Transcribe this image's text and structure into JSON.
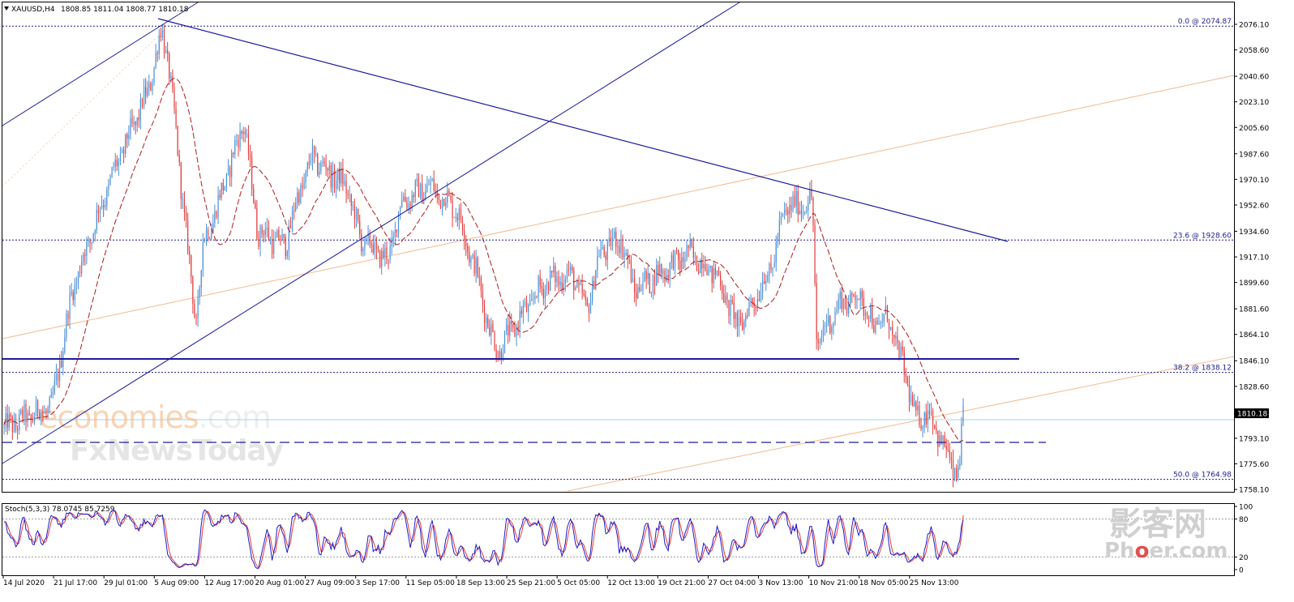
{
  "header": {
    "symbol": "XAUUSD,H4",
    "quote": "1808.85 1811.04 1808.77 1810.18"
  },
  "price_axis": {
    "labels": [
      "2076.10",
      "2058.60",
      "2040.60",
      "2023.10",
      "2005.60",
      "1987.60",
      "1970.10",
      "1952.60",
      "1934.60",
      "1917.10",
      "1899.60",
      "1881.60",
      "1864.10",
      "1846.10",
      "1828.60",
      "1810.18",
      "1793.10",
      "1775.60",
      "1758.10"
    ],
    "current_price": "1810.18"
  },
  "fib_levels": [
    {
      "label": "0.0 @ 2074.87",
      "price": 2074.87
    },
    {
      "label": "23.6 @ 1928.60",
      "price": 1928.6
    },
    {
      "label": "38.2 @ 1838.12",
      "price": 1838.12
    },
    {
      "label": "50.0 @ 1764.98",
      "price": 1764.98
    }
  ],
  "stoch": {
    "label": "Stoch(5,3,3) 78.0745 85.7259",
    "axis_labels": [
      "100",
      "80",
      "20",
      "0"
    ]
  },
  "time_axis": {
    "labels": [
      "14 Jul 2020",
      "21 Jul 17:00",
      "29 Jul 01:00",
      "5 Aug 09:00",
      "12 Aug 17:00",
      "20 Aug 01:00",
      "27 Aug 09:00",
      "3 Sep 17:00",
      "11 Sep 05:00",
      "18 Sep 13:00",
      "25 Sep 21:00",
      "5 Oct 05:00",
      "12 Oct 13:00",
      "19 Oct 21:00",
      "27 Oct 04:00",
      "3 Nov 13:00",
      "10 Nov 21:00",
      "18 Nov 05:00",
      "25 Nov 13:00"
    ]
  },
  "watermarks": {
    "site": "economies.com",
    "site_part1": "economies",
    "site_part2": ".com",
    "news": "FxNewsToday",
    "phoer_cn": "影客网",
    "phoer_en": "Phoer.com",
    "phoer_en_a": "Ph",
    "phoer_en_b": "o",
    "phoer_en_c": "er.com"
  },
  "colors": {
    "bull": "#4a8fd6",
    "bear": "#e23c3c",
    "trendline": "#1c1c9c",
    "fib": "#1c1c8c",
    "ma": "#b01a1a",
    "stoch_main": "#1c1cc8",
    "stoch_signal": "#e23c3c",
    "channel_orange": "#f5b98c",
    "current_line": "#9fd8e8"
  },
  "chart_data": {
    "type": "candlestick",
    "symbol": "XAUUSD",
    "timeframe": "H4",
    "ylim": [
      1758.1,
      2087
    ],
    "x_start": "14 Jul 2020",
    "x_end": "30 Nov 2020",
    "current_price": 1810.18,
    "path_points": [
      [
        "14 Jul",
        1800
      ],
      [
        "21 Jul",
        1815
      ],
      [
        "24 Jul",
        1895
      ],
      [
        "28 Jul",
        1950
      ],
      [
        "30 Jul",
        1975
      ],
      [
        "4 Aug",
        2030
      ],
      [
        "6 Aug",
        2072
      ],
      [
        "7 Aug",
        2050
      ],
      [
        "11 Aug",
        1870
      ],
      [
        "12 Aug",
        1925
      ],
      [
        "14 Aug",
        1950
      ],
      [
        "18 Aug",
        2010
      ],
      [
        "20 Aug",
        1935
      ],
      [
        "24 Aug",
        1925
      ],
      [
        "26 Aug",
        1960
      ],
      [
        "28 Aug",
        1985
      ],
      [
        "2 Sep",
        1965
      ],
      [
        "4 Sep",
        1930
      ],
      [
        "8 Sep",
        1915
      ],
      [
        "10 Sep",
        1955
      ],
      [
        "14 Sep",
        1965
      ],
      [
        "16 Sep",
        1958
      ],
      [
        "18 Sep",
        1950
      ],
      [
        "21 Sep",
        1905
      ],
      [
        "23 Sep",
        1865
      ],
      [
        "24 Sep",
        1852
      ],
      [
        "28 Sep",
        1880
      ],
      [
        "1 Oct",
        1900
      ],
      [
        "5 Oct",
        1905
      ],
      [
        "7 Oct",
        1880
      ],
      [
        "9 Oct",
        1920
      ],
      [
        "12 Oct",
        1930
      ],
      [
        "14 Oct",
        1895
      ],
      [
        "19 Oct",
        1910
      ],
      [
        "22 Oct",
        1920
      ],
      [
        "26 Oct",
        1905
      ],
      [
        "29 Oct",
        1870
      ],
      [
        "30 Oct",
        1875
      ],
      [
        "3 Nov",
        1910
      ],
      [
        "5 Nov",
        1950
      ],
      [
        "9 Nov",
        1955
      ],
      [
        "9 Nov 15:00",
        1855
      ],
      [
        "11 Nov",
        1870
      ],
      [
        "13 Nov",
        1885
      ],
      [
        "16 Nov",
        1890
      ],
      [
        "18 Nov",
        1870
      ],
      [
        "20 Nov",
        1875
      ],
      [
        "23 Nov",
        1830
      ],
      [
        "24 Nov",
        1805
      ],
      [
        "26 Nov",
        1812
      ],
      [
        "27 Nov",
        1800
      ],
      [
        "30 Nov",
        1767
      ],
      [
        "30 Nov 13:00",
        1778
      ],
      [
        "1 Dec",
        1810
      ]
    ],
    "horizontal_lines": [
      {
        "price": 1848,
        "style": "solid"
      },
      {
        "price": 1792,
        "style": "dashed"
      }
    ],
    "indicator": {
      "name": "Stochastic",
      "params": [
        5,
        3,
        3
      ],
      "main": 78.0745,
      "signal": 85.7259,
      "levels": [
        20,
        80
      ],
      "ylim": [
        0,
        100
      ]
    }
  }
}
